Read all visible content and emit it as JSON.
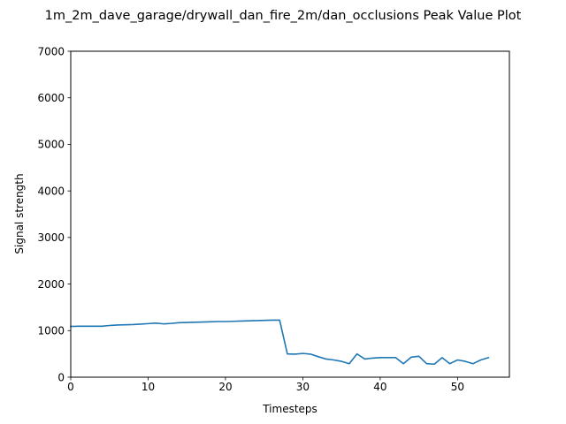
{
  "chart_data": {
    "type": "line",
    "title": "1m_2m_dave_garage/drywall_dan_fire_2m/dan_occlusions Peak Value Plot",
    "xlabel": "Timesteps",
    "ylabel": "Signal strength",
    "xlim": [
      0,
      56.7
    ],
    "ylim": [
      0,
      7000
    ],
    "xticks": [
      0,
      10,
      20,
      30,
      40,
      50
    ],
    "yticks": [
      0,
      1000,
      2000,
      3000,
      4000,
      5000,
      6000,
      7000
    ],
    "xtick_labels": [
      "0",
      "10",
      "20",
      "30",
      "40",
      "50"
    ],
    "ytick_labels": [
      "0",
      "1000",
      "2000",
      "3000",
      "4000",
      "5000",
      "6000",
      "7000"
    ],
    "grid": false,
    "line_color": "#1f77b4",
    "series": [
      {
        "x": [
          0,
          1,
          2,
          3,
          4,
          5,
          6,
          7,
          8,
          9,
          10,
          11,
          12,
          13,
          14,
          15,
          16,
          17,
          18,
          19,
          20,
          21,
          22,
          23,
          24,
          25,
          26,
          27,
          28,
          29,
          30,
          31,
          32,
          33,
          34,
          35,
          36,
          37,
          38,
          39,
          40,
          41,
          42,
          43,
          44,
          45,
          46,
          47,
          48,
          49,
          50,
          51,
          52,
          53,
          54
        ],
        "y": [
          1090,
          1095,
          1095,
          1095,
          1095,
          1110,
          1120,
          1125,
          1130,
          1140,
          1150,
          1160,
          1145,
          1155,
          1170,
          1175,
          1180,
          1185,
          1190,
          1195,
          1195,
          1200,
          1205,
          1210,
          1215,
          1220,
          1225,
          1225,
          500,
          495,
          510,
          495,
          440,
          390,
          370,
          340,
          290,
          500,
          390,
          410,
          420,
          420,
          420,
          290,
          430,
          450,
          290,
          280,
          420,
          290,
          370,
          340,
          290,
          370,
          420
        ]
      }
    ]
  }
}
